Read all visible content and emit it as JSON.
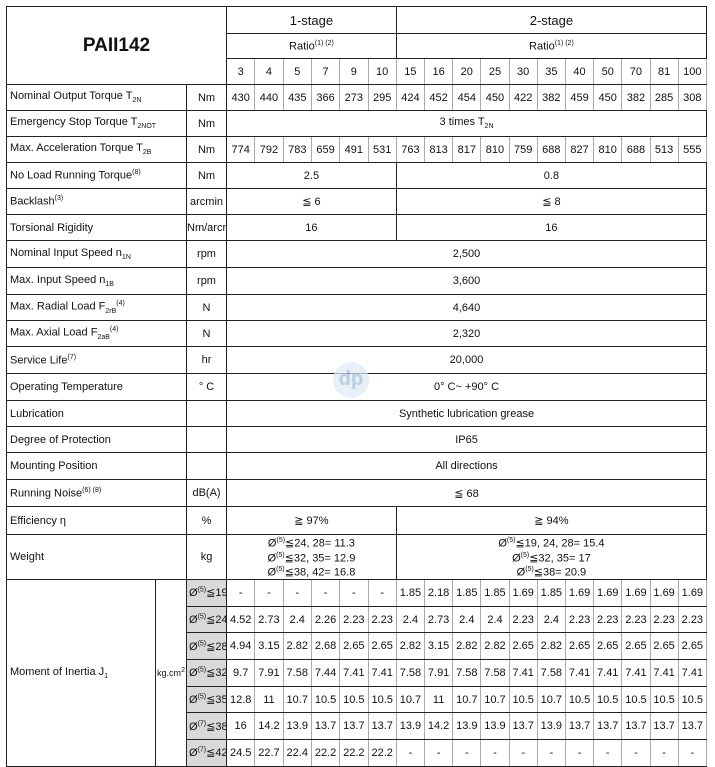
{
  "title": "PAII142",
  "stages": [
    {
      "label": "1-stage",
      "ratio_label": "Ratio",
      "ratio_note": "(1) (2)"
    },
    {
      "label": "2-stage",
      "ratio_label": "Ratio",
      "ratio_note": "(1) (2)"
    }
  ],
  "ratios_1": [
    "3",
    "4",
    "5",
    "7",
    "9",
    "10"
  ],
  "ratios_2": [
    "15",
    "16",
    "20",
    "25",
    "30",
    "35",
    "40",
    "50",
    "70",
    "81",
    "100"
  ],
  "rows": [
    {
      "label": "Nominal Output Torque T",
      "sub": "2N",
      "sup": "",
      "unit": "Nm",
      "values": [
        "430",
        "440",
        "435",
        "366",
        "273",
        "295",
        "424",
        "452",
        "454",
        "450",
        "422",
        "382",
        "459",
        "450",
        "382",
        "285",
        "308"
      ]
    },
    {
      "label": "Emergency Stop Torque T",
      "sub": "2NOT",
      "sup": "",
      "unit": "Nm",
      "all": "3 times T",
      "all_sub": "2N"
    },
    {
      "label": "Max. Acceleration Torque T",
      "sub": "2B",
      "sup": "",
      "unit": "Nm",
      "values": [
        "774",
        "792",
        "783",
        "659",
        "491",
        "531",
        "763",
        "813",
        "817",
        "810",
        "759",
        "688",
        "827",
        "810",
        "688",
        "513",
        "555"
      ]
    },
    {
      "label": "No Load Running Torque",
      "sub": "",
      "sup": "(8)",
      "unit": "Nm",
      "s1": "2.5",
      "s2": "0.8"
    },
    {
      "label": "Backlash",
      "sub": "",
      "sup": "(3)",
      "unit": "arcmin",
      "s1": "≦ 6",
      "s2": "≦ 8"
    },
    {
      "label": "Torsional Rigidity",
      "sub": "",
      "sup": "",
      "unit": "Nm/arcmin",
      "s1": "16",
      "s2": "16"
    },
    {
      "label": "Nominal Input Speed n",
      "sub": "1N",
      "sup": "",
      "unit": "rpm",
      "all": "2,500"
    },
    {
      "label": "Max. Input Speed n",
      "sub": "1B",
      "sup": "",
      "unit": "rpm",
      "all": "3,600"
    },
    {
      "label": "Max. Radial Load F",
      "sub": "2rB",
      "sup": "(4)",
      "unit": "N",
      "all": "4,640"
    },
    {
      "label": "Max. Axial Load F",
      "sub": "2aB",
      "sup": "(4)",
      "unit": "N",
      "all": "2,320"
    },
    {
      "label": "Service Life",
      "sub": "",
      "sup": "(7)",
      "unit": "hr",
      "all": "20,000"
    },
    {
      "label": "Operating Temperature",
      "sub": "",
      "sup": "",
      "unit": "° C",
      "all": "0° C~ +90° C"
    },
    {
      "label": "Lubrication",
      "sub": "",
      "sup": "",
      "unit": "",
      "all": "Synthetic lubrication grease"
    },
    {
      "label": "Degree of  Protection",
      "sub": "",
      "sup": "",
      "unit": "",
      "all": "IP65"
    },
    {
      "label": "Mounting Position",
      "sub": "",
      "sup": "",
      "unit": "",
      "all": "All directions"
    },
    {
      "label": "Running Noise",
      "sub": "",
      "sup": "(6) (8)",
      "unit": "dB(A)",
      "all": "≦ 68"
    },
    {
      "label": "Efficiency η",
      "sub": "",
      "sup": "",
      "unit": "%",
      "s1": "≧ 97%",
      "s2": "≧ 94%"
    },
    {
      "label": "Weight",
      "sub": "",
      "sup": "",
      "unit": "kg",
      "w1": [
        [
          "Ø",
          "(5)",
          "≦24, 28= 11.3"
        ],
        [
          "Ø",
          "(5)",
          "≦32, 35= 12.9"
        ],
        [
          "Ø",
          "(5)",
          "≦38, 42= 16.8"
        ]
      ],
      "w2": [
        [
          "Ø",
          "(5)",
          "≦19, 24, 28= 15.4"
        ],
        [
          "Ø",
          "(5)",
          "≦32, 35= 17"
        ],
        [
          "Ø",
          "(5)",
          "≦38= 20.9"
        ]
      ]
    }
  ],
  "inertia": {
    "label": "Moment of Inertia  J",
    "sub": "1",
    "unit": "kg.cm",
    "unit_sup": "2",
    "rows": [
      {
        "d": "Ø",
        "note": "(5)",
        "lim": "≦19",
        "values": [
          "-",
          "-",
          "-",
          "-",
          "-",
          "-",
          "1.85",
          "2.18",
          "1.85",
          "1.85",
          "1.69",
          "1.85",
          "1.69",
          "1.69",
          "1.69",
          "1.69",
          "1.69"
        ]
      },
      {
        "d": "Ø",
        "note": "(5)",
        "lim": "≦24",
        "values": [
          "4.52",
          "2.73",
          "2.4",
          "2.26",
          "2.23",
          "2.23",
          "2.4",
          "2.73",
          "2.4",
          "2.4",
          "2.23",
          "2.4",
          "2.23",
          "2.23",
          "2.23",
          "2.23",
          "2.23"
        ]
      },
      {
        "d": "Ø",
        "note": "(5)",
        "lim": "≦28",
        "values": [
          "4.94",
          "3.15",
          "2.82",
          "2.68",
          "2.65",
          "2.65",
          "2.82",
          "3.15",
          "2.82",
          "2.82",
          "2.65",
          "2.82",
          "2.65",
          "2.65",
          "2.65",
          "2.65",
          "2.65"
        ]
      },
      {
        "d": "Ø",
        "note": "(5)",
        "lim": "≦32",
        "values": [
          "9.7",
          "7.91",
          "7.58",
          "7.44",
          "7.41",
          "7.41",
          "7.58",
          "7.91",
          "7.58",
          "7.58",
          "7.41",
          "7.58",
          "7.41",
          "7.41",
          "7.41",
          "7.41",
          "7.41"
        ]
      },
      {
        "d": "Ø",
        "note": "(5)",
        "lim": "≦35",
        "values": [
          "12.8",
          "11",
          "10.7",
          "10.5",
          "10.5",
          "10.5",
          "10.7",
          "11",
          "10.7",
          "10.7",
          "10.5",
          "10.7",
          "10.5",
          "10.5",
          "10.5",
          "10.5",
          "10.5"
        ]
      },
      {
        "d": "Ø",
        "note": "(7)",
        "lim": "≦38",
        "values": [
          "16",
          "14.2",
          "13.9",
          "13.7",
          "13.7",
          "13.7",
          "13.9",
          "14.2",
          "13.9",
          "13.9",
          "13.7",
          "13.9",
          "13.7",
          "13.7",
          "13.7",
          "13.7",
          "13.7"
        ]
      },
      {
        "d": "Ø",
        "note": "(7)",
        "lim": "≦42",
        "values": [
          "24.5",
          "22.7",
          "22.4",
          "22.2",
          "22.2",
          "22.2",
          "-",
          "-",
          "-",
          "-",
          "-",
          "-",
          "-",
          "-",
          "-",
          "-",
          "-"
        ]
      }
    ]
  },
  "watermark": "dp"
}
